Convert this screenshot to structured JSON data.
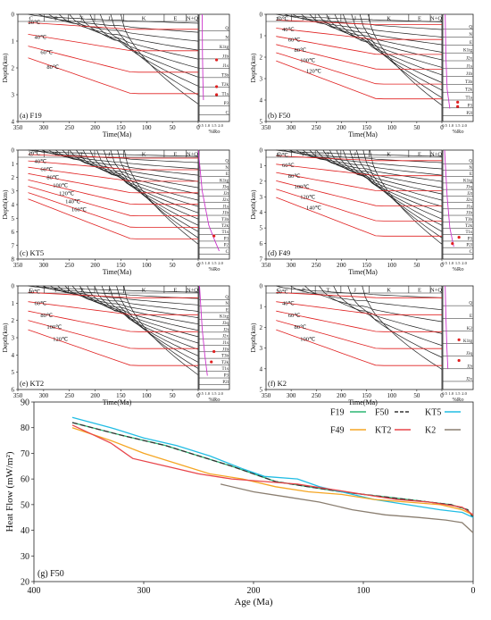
{
  "burial_panels": [
    {
      "key": "a",
      "label": "(a) F19",
      "max_depth": 4,
      "depth_ticks": [
        "0",
        "1",
        "2",
        "3",
        "4"
      ],
      "red_isotherms": [
        "20℃",
        "40℃",
        "60℃",
        "80℃"
      ],
      "strata": [
        "Q",
        "N",
        "K1tg",
        "J1b",
        "J1s",
        "T3b",
        "T2k",
        "T1s",
        "P3",
        "C"
      ],
      "ro_marks": [
        {
          "ro": 1.7,
          "depth": 1.7
        },
        {
          "ro": 1.7,
          "depth": 2.7
        },
        {
          "ro": 1.7,
          "depth": 3.0
        }
      ],
      "ro_curve": [
        [
          0.6,
          0
        ],
        [
          0.62,
          1.5
        ],
        [
          0.66,
          2.5
        ],
        [
          0.7,
          3.2
        ]
      ]
    },
    {
      "key": "b",
      "label": "(b) F50",
      "max_depth": 5,
      "depth_ticks": [
        "0",
        "1",
        "2",
        "3",
        "4",
        "5"
      ],
      "red_isotherms": [
        "20℃",
        "40℃",
        "60℃",
        "80℃",
        "100℃",
        "120℃"
      ],
      "strata": [
        "Q",
        "N",
        "E",
        "K1tg",
        "J2x",
        "J1s",
        "J1b",
        "T3b",
        "T2k",
        "T1s",
        "P3",
        "P2l"
      ],
      "ro_marks": [
        {
          "ro": 1.5,
          "depth": 4.1
        },
        {
          "ro": 1.5,
          "depth": 4.3
        }
      ],
      "ro_curve": [
        [
          0.55,
          0
        ],
        [
          0.6,
          2
        ],
        [
          0.7,
          3.5
        ],
        [
          0.9,
          4.4
        ]
      ]
    },
    {
      "key": "c",
      "label": "(c) KT5",
      "max_depth": 8,
      "depth_ticks": [
        "0",
        "1",
        "2",
        "3",
        "4",
        "5",
        "6",
        "7",
        "8"
      ],
      "red_isotherms": [
        "20℃",
        "40℃",
        "60℃",
        "80℃",
        "100℃",
        "120℃",
        "140℃",
        "160℃"
      ],
      "strata": [
        "Q",
        "N",
        "E",
        "K1tg",
        "J3q",
        "J2t",
        "J2x",
        "J1s",
        "J1b",
        "T3b",
        "T2k",
        "T1s",
        "P3",
        "P2",
        "C"
      ],
      "ro_marks": [
        {
          "ro": 1.5,
          "depth": 6.3
        }
      ],
      "ro_curve": [
        [
          0.3,
          0
        ],
        [
          0.6,
          3
        ],
        [
          1.1,
          5.5
        ],
        [
          1.5,
          6.5
        ],
        [
          1.9,
          7.4
        ]
      ]
    },
    {
      "key": "d",
      "label": "(d) F49",
      "max_depth": 7,
      "depth_ticks": [
        "0",
        "1",
        "2",
        "3",
        "4",
        "5",
        "6",
        "7"
      ],
      "red_isotherms": [
        "40℃",
        "60℃",
        "80℃",
        "100℃",
        "120℃",
        "140℃"
      ],
      "strata": [
        "Q",
        "N",
        "E",
        "K1tg",
        "J3q",
        "J2t",
        "J2x",
        "J1s",
        "J1b",
        "T3b",
        "T2k",
        "T1s",
        "P3",
        "P2l",
        "C"
      ],
      "ro_marks": [
        {
          "ro": 1.6,
          "depth": 5.6
        },
        {
          "ro": 1.1,
          "depth": 6.0
        }
      ],
      "ro_curve": [
        [
          0.5,
          0
        ],
        [
          0.7,
          3
        ],
        [
          0.9,
          5
        ],
        [
          1.2,
          6.2
        ]
      ]
    },
    {
      "key": "e",
      "label": "(e) KT2",
      "max_depth": 6,
      "depth_ticks": [
        "0",
        "1",
        "2",
        "3",
        "4",
        "5",
        "6"
      ],
      "red_isotherms": [
        "40℃",
        "60℃",
        "80℃",
        "100℃",
        "120℃"
      ],
      "strata": [
        "Q",
        "N",
        "E",
        "K1tg",
        "J3q",
        "J2t",
        "J2x",
        "J1s",
        "J1b",
        "T3b",
        "T2k",
        "T1s",
        "P3",
        "P2l"
      ],
      "ro_marks": [
        {
          "ro": 1.5,
          "depth": 3.8
        },
        {
          "ro": 1.3,
          "depth": 4.4
        }
      ],
      "ro_curve": [
        [
          0.4,
          0
        ],
        [
          0.6,
          2.5
        ],
        [
          0.8,
          4
        ],
        [
          1.0,
          5.2
        ]
      ]
    },
    {
      "key": "f",
      "label": "(f) K2",
      "max_depth": 5,
      "depth_ticks": [
        "0",
        "1",
        "2",
        "3",
        "4",
        "5"
      ],
      "red_isotherms": [
        "20℃",
        "40℃",
        "60℃",
        "80℃",
        "100℃"
      ],
      "strata": [
        "Q",
        "E",
        "K2",
        "K1tg",
        "J3q",
        "J2t",
        "J2x"
      ],
      "ro_marks": [
        {
          "ro": 1.6,
          "depth": 2.6
        },
        {
          "ro": 1.6,
          "depth": 3.6
        }
      ],
      "ro_curve": [
        [
          0.55,
          0
        ],
        [
          0.6,
          1.5
        ],
        [
          0.68,
          3.0
        ],
        [
          0.75,
          4.0
        ]
      ]
    }
  ],
  "burial_common": {
    "time_axis_label": "Time(Ma)",
    "depth_axis_label": "Depth(km)",
    "time_ticks": [
      "350",
      "300",
      "250",
      "200",
      "150",
      "100",
      "50",
      "0"
    ],
    "period_labels": [
      "C",
      "P",
      "T",
      "J",
      "K",
      "E",
      "N+Q"
    ],
    "ro_axis_label": "%Ro",
    "ro_ticks": [
      "0.5",
      "1.0",
      "1.5",
      "2.0"
    ]
  },
  "heat_flow": {
    "panel_label": "(g) F50",
    "chart_data": {
      "type": "line",
      "xlabel": "Age (Ma)",
      "ylabel": "Heat Flow (mW/m²)",
      "xlim": [
        400,
        0
      ],
      "ylim": [
        20,
        90
      ],
      "x_ticks": [
        400,
        300,
        200,
        100,
        0
      ],
      "y_ticks": [
        20,
        30,
        40,
        50,
        60,
        70,
        80,
        90
      ],
      "legend_position": "top-right",
      "series": [
        {
          "name": "F19",
          "color": "#2bb673",
          "dash": "none",
          "points": [
            [
              365,
              82
            ],
            [
              320,
              77
            ],
            [
              280,
              73
            ],
            [
              250,
              69
            ],
            [
              220,
              65
            ],
            [
              180,
              59
            ],
            [
              150,
              57
            ],
            [
              120,
              55
            ],
            [
              80,
              53
            ],
            [
              40,
              51
            ],
            [
              20,
              50
            ],
            [
              5,
              48
            ],
            [
              0,
              45
            ]
          ]
        },
        {
          "name": "F50",
          "color": "#333333",
          "dash": "6,3",
          "points": [
            [
              365,
              82
            ],
            [
              320,
              77
            ],
            [
              280,
              73
            ],
            [
              250,
              69
            ],
            [
              220,
              65
            ],
            [
              180,
              59
            ],
            [
              150,
              57
            ],
            [
              120,
              55
            ],
            [
              80,
              53
            ],
            [
              40,
              51
            ],
            [
              20,
              50
            ],
            [
              5,
              48
            ],
            [
              0,
              45
            ]
          ]
        },
        {
          "name": "KT5",
          "color": "#22bde4",
          "dash": "none",
          "points": [
            [
              365,
              84
            ],
            [
              330,
              80
            ],
            [
              300,
              76
            ],
            [
              270,
              73
            ],
            [
              240,
              69
            ],
            [
              210,
              64
            ],
            [
              190,
              61
            ],
            [
              160,
              60
            ],
            [
              140,
              57
            ],
            [
              120,
              55
            ],
            [
              90,
              52
            ],
            [
              60,
              50
            ],
            [
              30,
              48
            ],
            [
              10,
              47
            ],
            [
              0,
              45
            ]
          ]
        },
        {
          "name": "F49",
          "color": "#f5a623",
          "dash": "none",
          "points": [
            [
              365,
              80
            ],
            [
              330,
              75
            ],
            [
              300,
              70
            ],
            [
              270,
              66
            ],
            [
              240,
              62
            ],
            [
              210,
              60
            ],
            [
              180,
              57
            ],
            [
              150,
              55
            ],
            [
              120,
              54
            ],
            [
              90,
              52
            ],
            [
              60,
              51
            ],
            [
              30,
              50
            ],
            [
              10,
              48
            ],
            [
              0,
              46
            ]
          ]
        },
        {
          "name": "KT2",
          "color": "#e8454a",
          "dash": "none",
          "points": [
            [
              365,
              81
            ],
            [
              330,
              74
            ],
            [
              310,
              68
            ],
            [
              280,
              65
            ],
            [
              250,
              62
            ],
            [
              220,
              60
            ],
            [
              190,
              59
            ],
            [
              160,
              58
            ],
            [
              130,
              56
            ],
            [
              100,
              54
            ],
            [
              70,
              52
            ],
            [
              40,
              51
            ],
            [
              10,
              49
            ],
            [
              0,
              46
            ]
          ]
        },
        {
          "name": "K2",
          "color": "#8a7e70",
          "dash": "none",
          "points": [
            [
              230,
              58
            ],
            [
              200,
              55
            ],
            [
              170,
              53
            ],
            [
              140,
              51
            ],
            [
              110,
              48
            ],
            [
              80,
              46
            ],
            [
              50,
              45
            ],
            [
              25,
              44
            ],
            [
              10,
              43
            ],
            [
              0,
              39
            ]
          ]
        }
      ]
    }
  }
}
